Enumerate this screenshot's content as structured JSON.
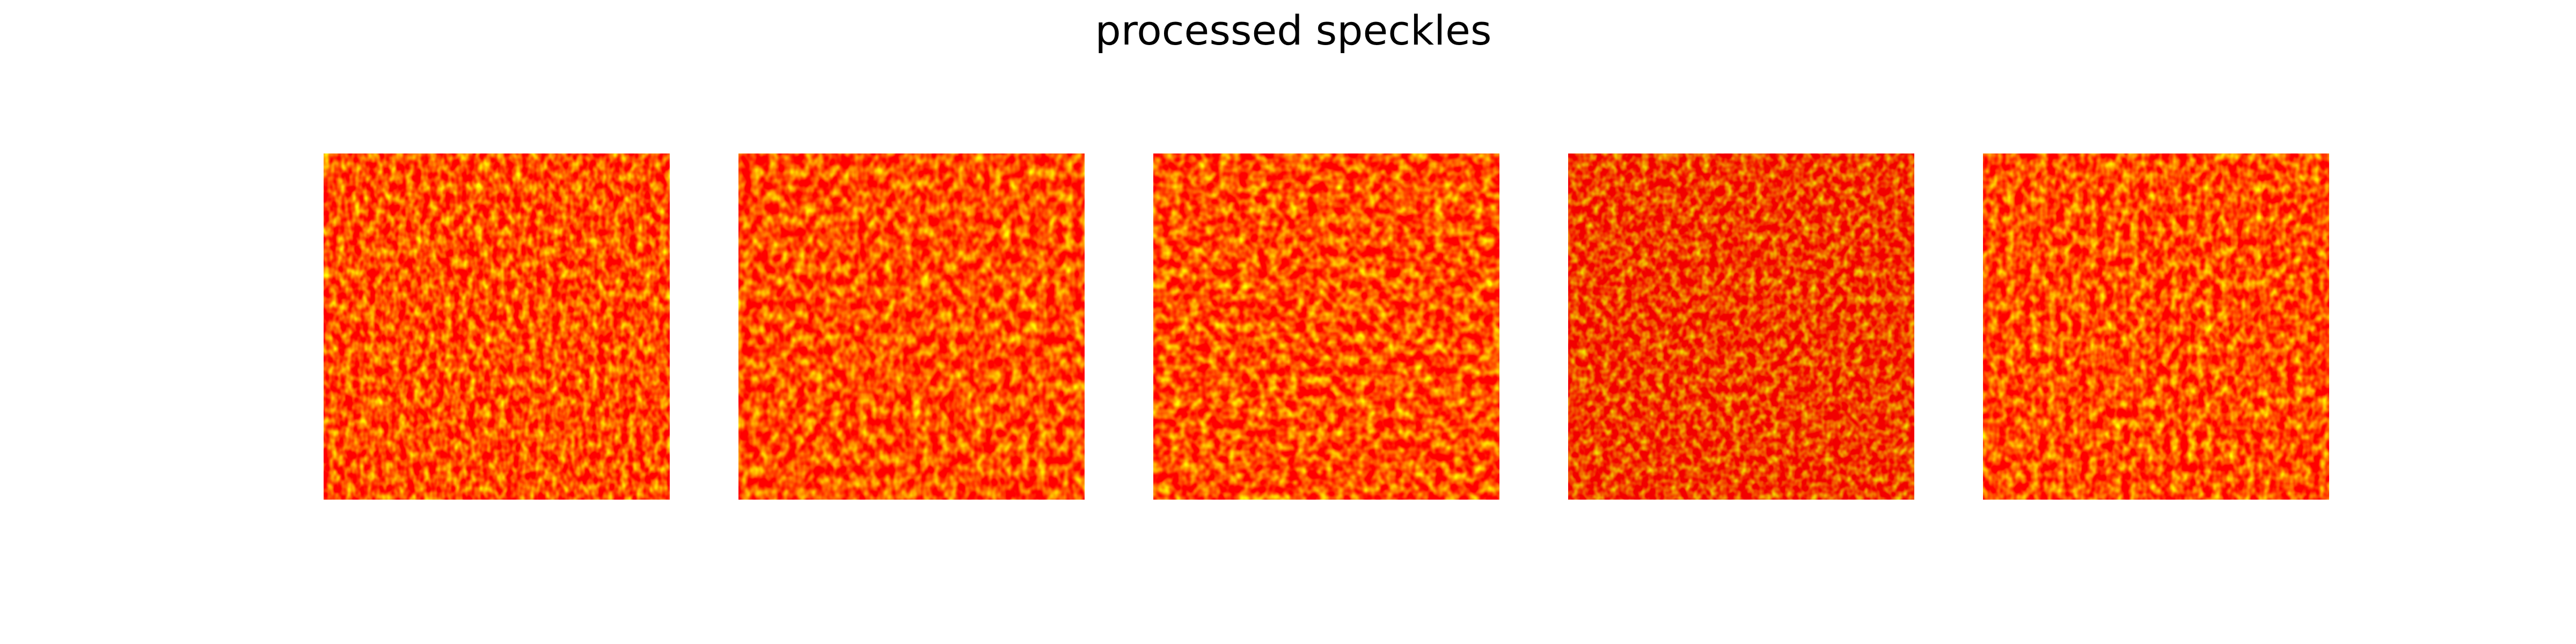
{
  "title": "processed speckles"
}
